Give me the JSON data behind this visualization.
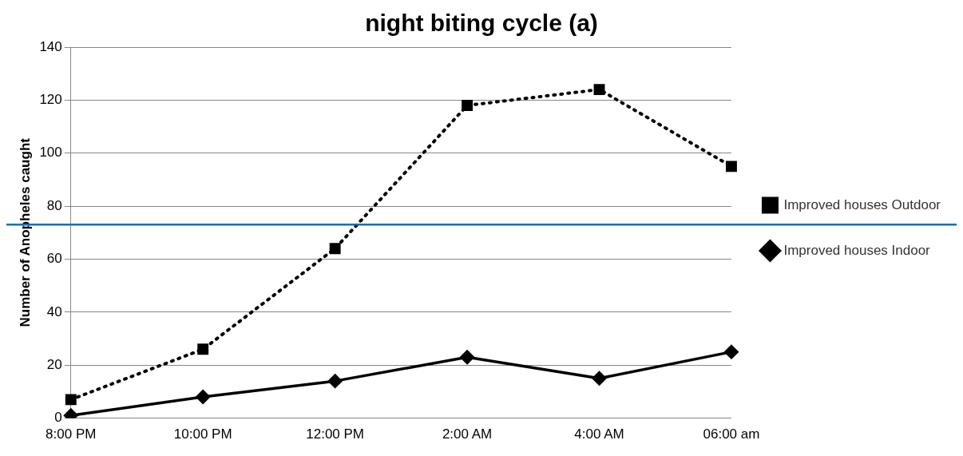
{
  "chart_data": {
    "type": "line",
    "title": "night biting cycle (a)",
    "ylabel": "Number of Anopheles caught",
    "categories": [
      "8:00 PM",
      "10:00 PM",
      "12:00 PM",
      "2:00 AM",
      "4:00 AM",
      "06:00 am"
    ],
    "series": [
      {
        "name": "Improved houses Outdoor",
        "color": "#000000",
        "values": [
          7,
          26,
          64,
          118,
          124,
          95
        ],
        "marker": "square",
        "line_style": "dotted"
      },
      {
        "name": "Improved houses Indoor",
        "color": "#000000",
        "values": [
          1,
          8,
          14,
          23,
          15,
          25
        ],
        "marker": "diamond",
        "line_style": "solid"
      }
    ],
    "ylim": [
      0,
      140
    ],
    "yticks": [
      0,
      20,
      40,
      60,
      80,
      100,
      120,
      140
    ],
    "grid": "y",
    "legend": "right",
    "ref_lines": [
      {
        "axis": "y",
        "value": 73,
        "color": "#0070c0"
      }
    ]
  }
}
